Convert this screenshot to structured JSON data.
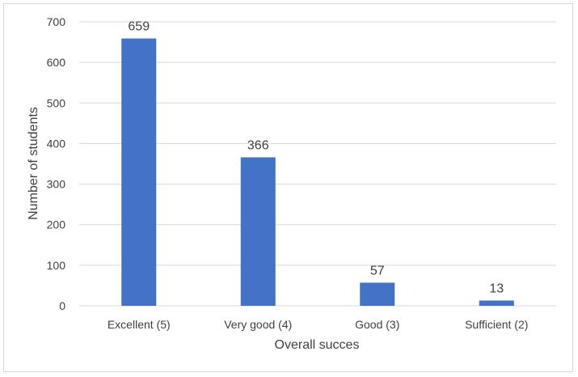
{
  "chart_data": {
    "type": "bar",
    "categories": [
      "Excellent (5)",
      "Very good (4)",
      "Good (3)",
      "Sufficient (2)"
    ],
    "values": [
      659,
      366,
      57,
      13
    ],
    "data_labels": [
      "659",
      "366",
      "57",
      "13"
    ],
    "title": "",
    "xlabel": "Overall succes",
    "ylabel": "Number of students",
    "ylim": [
      0,
      700
    ],
    "yticks": [
      0,
      100,
      200,
      300,
      400,
      500,
      600,
      700
    ],
    "ytick_labels": [
      "0",
      "100",
      "200",
      "300",
      "400",
      "500",
      "600",
      "700"
    ],
    "grid": true,
    "legend": "none",
    "bar_color": "#4472c4",
    "grid_color": "#d9d9d9"
  }
}
